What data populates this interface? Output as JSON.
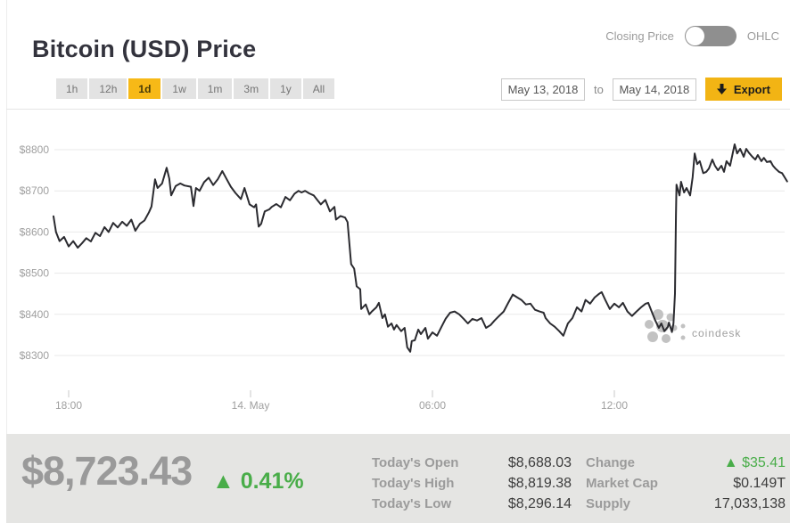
{
  "header": {
    "title": "Bitcoin (USD) Price",
    "toggle": {
      "left_label": "Closing Price",
      "right_label": "OHLC",
      "state": "closing-price"
    }
  },
  "controls": {
    "ranges": [
      {
        "label": "1h",
        "selected": false
      },
      {
        "label": "12h",
        "selected": false
      },
      {
        "label": "1d",
        "selected": true
      },
      {
        "label": "1w",
        "selected": false
      },
      {
        "label": "1m",
        "selected": false
      },
      {
        "label": "3m",
        "selected": false
      },
      {
        "label": "1y",
        "selected": false
      },
      {
        "label": "All",
        "selected": false
      }
    ],
    "date_from": "May 13, 2018",
    "to_label": "to",
    "date_to": "May 14, 2018",
    "export_label": "Export"
  },
  "icons": {
    "export": "down-arrow-icon",
    "toggle": "switch-knob",
    "watermark": "coindesk-dots-logo"
  },
  "colors": {
    "accent_yellow": "#f7b917",
    "export_yellow": "#f2b414",
    "green": "#49ad49",
    "line": "#2b2b30",
    "grid": "#e9e9e9",
    "axis_text": "#a0a0a0",
    "panel_bg": "#e5e5e3",
    "label_gray": "#9b9b9b",
    "value_dark": "#3d3d3d",
    "watermark_gray": "#c9c9c9",
    "toggle_track": "#8f8f8f"
  },
  "chart_data": {
    "type": "line",
    "title": "Bitcoin (USD) Price, 1 day",
    "xlabel": "",
    "ylabel": "",
    "x_unit": "minutes since 2018-05-13 17:30",
    "ylim": [
      8250,
      8850
    ],
    "grid": true,
    "watermark": "coindesk",
    "line_color": "#2b2b30",
    "y_ticks": [
      {
        "value": 8800,
        "label": "$8800"
      },
      {
        "value": 8700,
        "label": "$8700"
      },
      {
        "value": 8600,
        "label": "$8600"
      },
      {
        "value": 8500,
        "label": "$8500"
      },
      {
        "value": 8400,
        "label": "$8400"
      },
      {
        "value": 8300,
        "label": "$8300"
      }
    ],
    "x_ticks": [
      {
        "m": 30,
        "label": "18:00"
      },
      {
        "m": 390,
        "label": "14. May"
      },
      {
        "m": 750,
        "label": "06:00"
      },
      {
        "m": 1110,
        "label": "12:00"
      }
    ],
    "points": [
      [
        0,
        8638
      ],
      [
        5,
        8600
      ],
      [
        12,
        8578
      ],
      [
        21,
        8588
      ],
      [
        30,
        8565
      ],
      [
        39,
        8578
      ],
      [
        48,
        8562
      ],
      [
        56,
        8572
      ],
      [
        65,
        8585
      ],
      [
        74,
        8577
      ],
      [
        83,
        8598
      ],
      [
        92,
        8590
      ],
      [
        101,
        8612
      ],
      [
        109,
        8600
      ],
      [
        118,
        8622
      ],
      [
        127,
        8611
      ],
      [
        136,
        8625
      ],
      [
        145,
        8615
      ],
      [
        154,
        8630
      ],
      [
        162,
        8603
      ],
      [
        171,
        8620
      ],
      [
        180,
        8628
      ],
      [
        189,
        8648
      ],
      [
        194,
        8662
      ],
      [
        201,
        8728
      ],
      [
        206,
        8707
      ],
      [
        215,
        8718
      ],
      [
        224,
        8756
      ],
      [
        229,
        8730
      ],
      [
        233,
        8689
      ],
      [
        242,
        8712
      ],
      [
        251,
        8718
      ],
      [
        259,
        8713
      ],
      [
        272,
        8710
      ],
      [
        277,
        8663
      ],
      [
        282,
        8707
      ],
      [
        289,
        8700
      ],
      [
        298,
        8721
      ],
      [
        307,
        8732
      ],
      [
        316,
        8714
      ],
      [
        325,
        8728
      ],
      [
        334,
        8748
      ],
      [
        342,
        8730
      ],
      [
        351,
        8710
      ],
      [
        360,
        8695
      ],
      [
        371,
        8680
      ],
      [
        378,
        8707
      ],
      [
        388,
        8667
      ],
      [
        397,
        8660
      ],
      [
        401,
        8667
      ],
      [
        406,
        8613
      ],
      [
        411,
        8620
      ],
      [
        418,
        8650
      ],
      [
        427,
        8655
      ],
      [
        432,
        8661
      ],
      [
        441,
        8668
      ],
      [
        450,
        8660
      ],
      [
        459,
        8685
      ],
      [
        468,
        8677
      ],
      [
        477,
        8693
      ],
      [
        485,
        8700
      ],
      [
        491,
        8696
      ],
      [
        498,
        8700
      ],
      [
        506,
        8694
      ],
      [
        515,
        8689
      ],
      [
        522,
        8678
      ],
      [
        529,
        8667
      ],
      [
        538,
        8678
      ],
      [
        547,
        8650
      ],
      [
        556,
        8661
      ],
      [
        559,
        8630
      ],
      [
        568,
        8639
      ],
      [
        577,
        8635
      ],
      [
        582,
        8624
      ],
      [
        589,
        8522
      ],
      [
        595,
        8511
      ],
      [
        600,
        8468
      ],
      [
        607,
        8461
      ],
      [
        609,
        8413
      ],
      [
        618,
        8424
      ],
      [
        625,
        8400
      ],
      [
        630,
        8407
      ],
      [
        639,
        8417
      ],
      [
        644,
        8428
      ],
      [
        651,
        8391
      ],
      [
        656,
        8400
      ],
      [
        662,
        8370
      ],
      [
        669,
        8378
      ],
      [
        674,
        8363
      ],
      [
        679,
        8374
      ],
      [
        688,
        8359
      ],
      [
        695,
        8367
      ],
      [
        700,
        8320
      ],
      [
        706,
        8309
      ],
      [
        709,
        8335
      ],
      [
        715,
        8337
      ],
      [
        722,
        8363
      ],
      [
        727,
        8352
      ],
      [
        736,
        8367
      ],
      [
        741,
        8341
      ],
      [
        750,
        8356
      ],
      [
        759,
        8348
      ],
      [
        768,
        8370
      ],
      [
        776,
        8389
      ],
      [
        785,
        8404
      ],
      [
        794,
        8407
      ],
      [
        803,
        8400
      ],
      [
        812,
        8389
      ],
      [
        820,
        8378
      ],
      [
        829,
        8389
      ],
      [
        838,
        8385
      ],
      [
        847,
        8391
      ],
      [
        856,
        8367
      ],
      [
        865,
        8374
      ],
      [
        873,
        8385
      ],
      [
        882,
        8396
      ],
      [
        891,
        8407
      ],
      [
        900,
        8428
      ],
      [
        909,
        8448
      ],
      [
        918,
        8441
      ],
      [
        926,
        8435
      ],
      [
        935,
        8424
      ],
      [
        944,
        8426
      ],
      [
        953,
        8411
      ],
      [
        962,
        8407
      ],
      [
        970,
        8404
      ],
      [
        974,
        8391
      ],
      [
        983,
        8378
      ],
      [
        992,
        8370
      ],
      [
        1001,
        8359
      ],
      [
        1009,
        8348
      ],
      [
        1018,
        8378
      ],
      [
        1027,
        8391
      ],
      [
        1036,
        8417
      ],
      [
        1045,
        8407
      ],
      [
        1053,
        8435
      ],
      [
        1062,
        8426
      ],
      [
        1071,
        8441
      ],
      [
        1080,
        8450
      ],
      [
        1085,
        8454
      ],
      [
        1092,
        8435
      ],
      [
        1101,
        8413
      ],
      [
        1110,
        8426
      ],
      [
        1119,
        8417
      ],
      [
        1127,
        8428
      ],
      [
        1136,
        8407
      ],
      [
        1145,
        8396
      ],
      [
        1154,
        8407
      ],
      [
        1163,
        8417
      ],
      [
        1172,
        8426
      ],
      [
        1177,
        8428
      ],
      [
        1186,
        8400
      ],
      [
        1191,
        8385
      ],
      [
        1198,
        8367
      ],
      [
        1203,
        8378
      ],
      [
        1209,
        8359
      ],
      [
        1216,
        8370
      ],
      [
        1218,
        8380
      ],
      [
        1224,
        8357
      ],
      [
        1227,
        8378
      ],
      [
        1230,
        8450
      ],
      [
        1232,
        8640
      ],
      [
        1233,
        8715
      ],
      [
        1239,
        8689
      ],
      [
        1242,
        8722
      ],
      [
        1248,
        8696
      ],
      [
        1253,
        8707
      ],
      [
        1260,
        8689
      ],
      [
        1265,
        8733
      ],
      [
        1269,
        8791
      ],
      [
        1274,
        8765
      ],
      [
        1279,
        8772
      ],
      [
        1286,
        8743
      ],
      [
        1292,
        8746
      ],
      [
        1297,
        8754
      ],
      [
        1304,
        8776
      ],
      [
        1309,
        8761
      ],
      [
        1315,
        8750
      ],
      [
        1322,
        8761
      ],
      [
        1327,
        8746
      ],
      [
        1332,
        8772
      ],
      [
        1339,
        8761
      ],
      [
        1348,
        8813
      ],
      [
        1353,
        8791
      ],
      [
        1359,
        8802
      ],
      [
        1366,
        8783
      ],
      [
        1371,
        8802
      ],
      [
        1376,
        8793
      ],
      [
        1383,
        8783
      ],
      [
        1389,
        8776
      ],
      [
        1394,
        8787
      ],
      [
        1401,
        8772
      ],
      [
        1406,
        8780
      ],
      [
        1412,
        8770
      ],
      [
        1419,
        8772
      ],
      [
        1424,
        8761
      ],
      [
        1429,
        8754
      ],
      [
        1436,
        8746
      ],
      [
        1442,
        8743
      ],
      [
        1447,
        8733
      ],
      [
        1452,
        8723
      ]
    ]
  },
  "footer": {
    "price": "$8,723.43",
    "change": {
      "arrow": "▲",
      "pct": "0.41%"
    },
    "stats_left": [
      {
        "label": "Today's Open",
        "value": "$8,688.03"
      },
      {
        "label": "Today's High",
        "value": "$8,819.38"
      },
      {
        "label": "Today's Low",
        "value": "$8,296.14"
      }
    ],
    "stats_right": [
      {
        "label": "Change",
        "value": "▲ $35.41",
        "green": true
      },
      {
        "label": "Market Cap",
        "value": "$0.149T"
      },
      {
        "label": "Supply",
        "value": "17,033,138"
      }
    ]
  }
}
